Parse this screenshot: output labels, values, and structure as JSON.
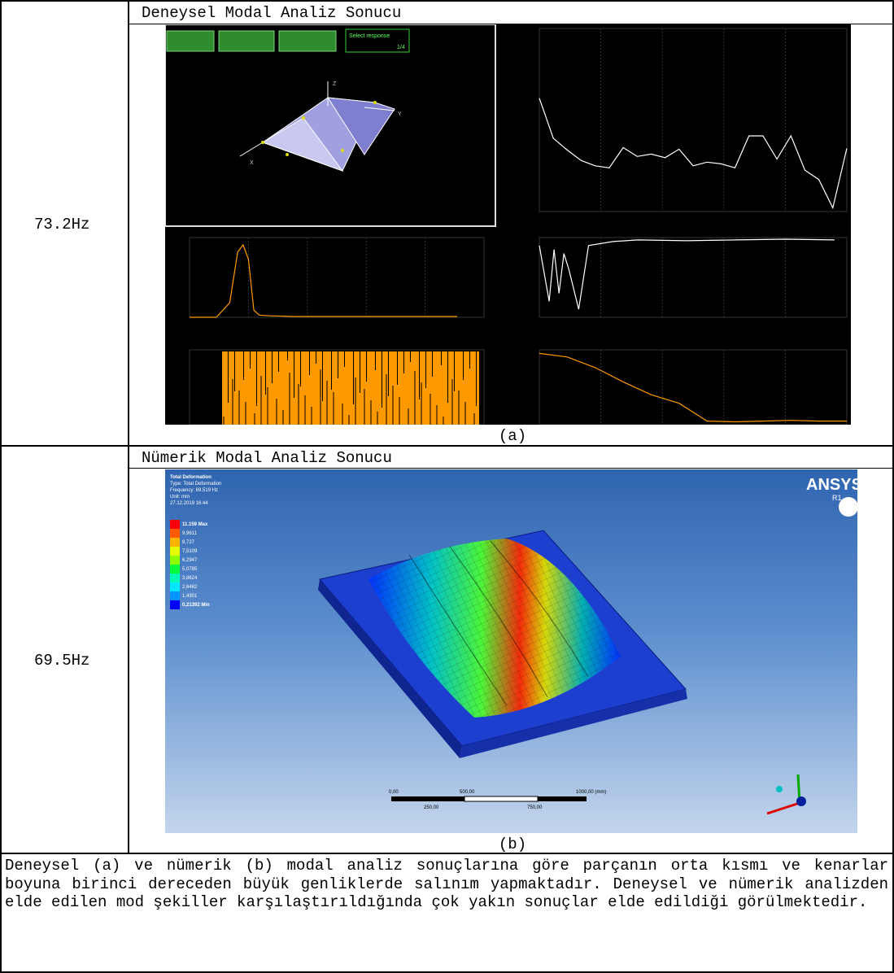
{
  "rows": [
    {
      "frequency": "73.2Hz",
      "header": "Deneysel Modal Analiz Sonucu",
      "caption": "(a)",
      "screen": {
        "buttons": [
          "",
          "",
          ""
        ],
        "select_label": "Select response",
        "select_value": "1/4",
        "axis_labels": [
          "Z",
          "Y",
          "X"
        ]
      }
    },
    {
      "frequency": "69.5Hz",
      "header": "Nümerik Modal Analiz Sonucu",
      "caption": "(b)",
      "ansys": {
        "logo": "ANSYS",
        "logo_sub": "R1",
        "info": [
          "Total Deformation",
          "Type: Total Deformation",
          "Frequency: 69.519 Hz",
          "Unit: mm",
          "27.12.2019 16:44"
        ],
        "legend": [
          "11.159 Max",
          "9,9611",
          "8,727",
          "7,5109",
          "6,2947",
          "5,0785",
          "3,8624",
          "2,6462",
          "1,4301",
          "0,21392 Min"
        ],
        "legend_colors": [
          "#ff0000",
          "#ff5a00",
          "#ffb400",
          "#e6ff00",
          "#8cff00",
          "#00ff3c",
          "#00ffb4",
          "#00e6ff",
          "#0096ff",
          "#0000ff"
        ],
        "scale_top": [
          "0,00",
          "500,00",
          "1000,00 (mm)"
        ],
        "scale_bottom": [
          "250,00",
          "750,00"
        ]
      }
    }
  ],
  "paragraph": "Deneysel (a) ve nümerik (b) modal analiz sonuçlarına göre parçanın orta kısmı ve kenarlar boyuna birinci dereceden büyük genliklerde salınım yapmaktadır. Deneysel ve nümerik analizden elde edilen mod şekiller karşılaştırıldığında çok yakın sonuçlar elde edildiği görülmektedir.",
  "chart_data": [
    {
      "type": "line",
      "x": [
        0,
        5,
        10,
        15,
        20,
        25,
        30,
        35,
        40,
        45,
        50,
        55,
        60,
        65,
        70,
        75,
        80,
        85,
        90,
        95,
        100,
        105,
        110
      ],
      "y": [
        30,
        4,
        2.2,
        1.3,
        1.0,
        0.9,
        2.5,
        1.6,
        1.8,
        1.5,
        2.3,
        1.0,
        1.2,
        1.1,
        0.9,
        4.5,
        4.5,
        1.4,
        4.5,
        0.8,
        0.5,
        0.12,
        2.4
      ],
      "xlim": [
        0,
        110
      ],
      "ylim": [
        0.1,
        1000
      ],
      "yscale": "log",
      "color": "#ffffff"
    },
    {
      "type": "line",
      "color": "#ff9900",
      "x": [
        0,
        5,
        10,
        15,
        18,
        20,
        22,
        24,
        26,
        30,
        40,
        60,
        80,
        100
      ],
      "y": [
        0,
        0,
        0,
        0.2,
        0.9,
        1.0,
        0.8,
        0.1,
        0.03,
        0.02,
        0.01,
        0.01,
        0.01,
        0.01
      ],
      "xlim": [
        0,
        110
      ],
      "ylim": [
        0,
        1.1
      ]
    },
    {
      "type": "line",
      "color": "#ffffff",
      "x": [
        0,
        40,
        60,
        80,
        100,
        120,
        160,
        200,
        300,
        400,
        600,
        800,
        1000,
        1200
      ],
      "y": [
        0.9,
        0.2,
        0.85,
        0.3,
        0.8,
        0.6,
        0.1,
        0.9,
        0.95,
        0.97,
        0.96,
        0.97,
        0.98,
        0.97
      ],
      "xlim": [
        0,
        1250
      ],
      "ylim": [
        0,
        1
      ]
    },
    {
      "type": "line",
      "color": "#ff9900",
      "x": [
        0,
        10,
        20,
        30,
        40,
        50,
        60,
        70,
        80,
        90,
        100,
        110
      ],
      "y": [
        1.0,
        0.95,
        0.8,
        0.6,
        0.42,
        0.3,
        0.05,
        0.04,
        0.05,
        0.06,
        0.05,
        0.05
      ],
      "xlim": [
        0,
        110
      ],
      "ylim": [
        0,
        1.05
      ]
    }
  ]
}
